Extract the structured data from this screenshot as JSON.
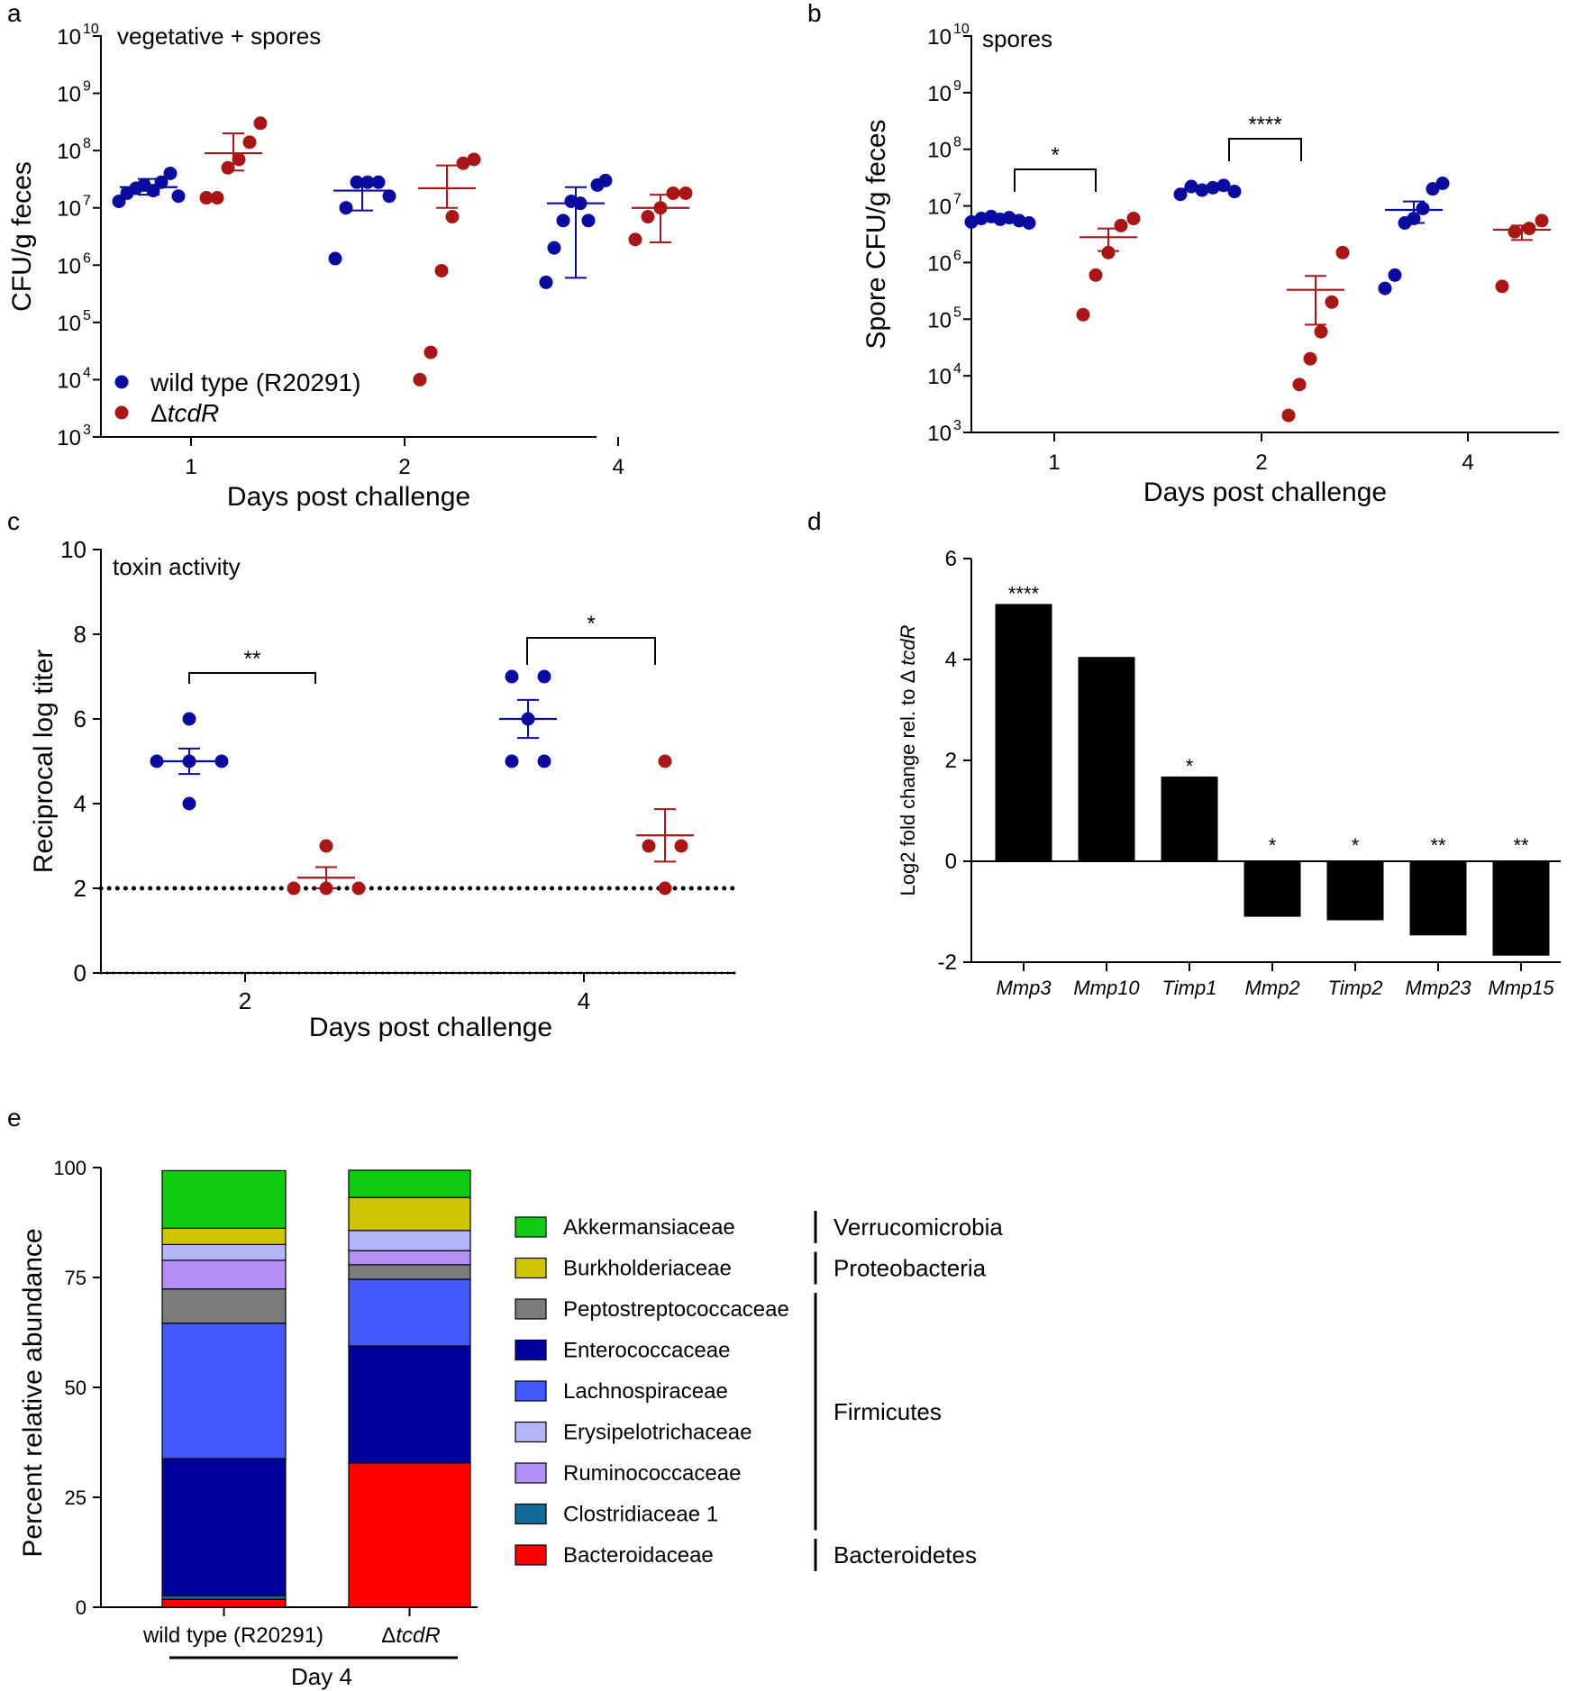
{
  "figure": {
    "panels": [
      "a",
      "b",
      "c",
      "d",
      "e"
    ]
  },
  "colors": {
    "wild_type": "#0a0a9e",
    "mutant": "#a81616",
    "black": "#000000"
  },
  "legend_ab": {
    "wild_type": "wild type (R20291)",
    "mutant_prefix": "Δ",
    "mutant_gene": "tcdR"
  },
  "chart_data": [
    {
      "id": "a",
      "type": "scatter",
      "scale": "log",
      "panel_label": "a",
      "title": "vegetative + spores",
      "xlabel": "Days post challenge",
      "ylabel": "CFU/g feces",
      "categories": [
        "1",
        "2",
        "4"
      ],
      "ylim_exp": [
        3,
        10
      ],
      "ytick_base": "10",
      "ytick_exps": [
        "3",
        "4",
        "5",
        "6",
        "7",
        "8",
        "9",
        "10"
      ],
      "series": [
        {
          "name": "wild type (R20291)",
          "groups": [
            {
              "x": "1",
              "points": [
                13000000,
                18000000,
                22000000,
                25000000,
                20000000,
                28000000,
                40000000,
                16000000
              ],
              "mean": 23000000,
              "err_low": 17000000,
              "err_high": 32000000
            },
            {
              "x": "2",
              "points": [
                1300000,
                10000000,
                28000000,
                28000000,
                28000000,
                16000000
              ],
              "mean": 20000000,
              "err_low": 9000000,
              "err_high": 30000000
            },
            {
              "x": "4",
              "points": [
                500000,
                2000000,
                6000000,
                13000000,
                12000000,
                6000000,
                25000000,
                30000000
              ],
              "mean": 12000000,
              "err_low": 600000,
              "err_high": 23000000
            }
          ]
        },
        {
          "name": "ΔtcdR",
          "groups": [
            {
              "x": "1",
              "points": [
                15000000,
                15000000,
                50000000,
                70000000,
                140000000,
                300000000
              ],
              "mean": 90000000,
              "err_low": 45000000,
              "err_high": 200000000
            },
            {
              "x": "2",
              "points": [
                10000,
                30000,
                800000,
                7000000,
                60000000,
                70000000
              ],
              "mean": 22000000,
              "err_low": 10000000,
              "err_high": 55000000
            },
            {
              "x": "4",
              "points": [
                2800000,
                7000000,
                10000000,
                18000000,
                18000000
              ],
              "mean": 10000000,
              "err_low": 2500000,
              "err_high": 17000000
            }
          ]
        }
      ]
    },
    {
      "id": "b",
      "type": "scatter",
      "scale": "log",
      "panel_label": "b",
      "title": "spores",
      "xlabel": "Days post challenge",
      "ylabel": "Spore CFU/g feces",
      "categories": [
        "1",
        "2",
        "4"
      ],
      "ylim_exp": [
        3,
        10
      ],
      "ytick_base": "10",
      "ytick_exps": [
        "3",
        "4",
        "5",
        "6",
        "7",
        "8",
        "9",
        "10"
      ],
      "series": [
        {
          "name": "wild type (R20291)",
          "groups": [
            {
              "x": "1",
              "points": [
                5200000,
                6000000,
                6500000,
                5800000,
                6200000,
                5500000,
                5000000
              ],
              "mean": 5800000,
              "err_low": 5200000,
              "err_high": 6400000
            },
            {
              "x": "2",
              "points": [
                16000000,
                22000000,
                19000000,
                21000000,
                23000000,
                18000000
              ],
              "mean": 20000000,
              "err_low": 18000000,
              "err_high": 22000000
            },
            {
              "x": "4",
              "points": [
                350000,
                600000,
                5000000,
                6000000,
                9000000,
                20000000,
                25000000
              ],
              "mean": 8500000,
              "err_low": 5000000,
              "err_high": 12000000
            }
          ]
        },
        {
          "name": "ΔtcdR",
          "groups": [
            {
              "x": "1",
              "points": [
                120000,
                600000,
                1500000,
                4500000,
                6000000
              ],
              "mean": 2800000,
              "err_low": 1600000,
              "err_high": 4000000
            },
            {
              "x": "2",
              "points": [
                2000,
                7000,
                20000,
                60000,
                200000,
                1500000
              ],
              "mean": 330000,
              "err_low": 80000,
              "err_high": 580000
            },
            {
              "x": "4",
              "points": [
                380000,
                3500000,
                4000000,
                5500000
              ],
              "mean": 3800000,
              "err_low": 2500000,
              "err_high": 4500000
            }
          ]
        }
      ],
      "annotations": [
        {
          "x": "1",
          "text": "*"
        },
        {
          "x": "2",
          "text": "****"
        }
      ]
    },
    {
      "id": "c",
      "type": "scatter",
      "scale": "linear",
      "panel_label": "c",
      "title": "toxin activity",
      "xlabel": "Days post challenge",
      "ylabel": "Reciprocal log titer",
      "categories": [
        "2",
        "4"
      ],
      "ylim": [
        0,
        10
      ],
      "yticks": [
        "0",
        "2",
        "4",
        "6",
        "8",
        "10"
      ],
      "limit_of_detection": 2,
      "series": [
        {
          "name": "wild type (R20291)",
          "groups": [
            {
              "x": "2",
              "points": [
                6,
                5,
                5,
                5,
                4
              ],
              "mean": 5.0,
              "err_low": 4.7,
              "err_high": 5.3
            },
            {
              "x": "4",
              "points": [
                7,
                7,
                6,
                5,
                5
              ],
              "mean": 6.0,
              "err_low": 5.55,
              "err_high": 6.45
            }
          ]
        },
        {
          "name": "ΔtcdR",
          "groups": [
            {
              "x": "2",
              "points": [
                3,
                2,
                2,
                2
              ],
              "mean": 2.25,
              "err_low": 2.0,
              "err_high": 2.5
            },
            {
              "x": "4",
              "points": [
                5,
                3,
                3,
                2
              ],
              "mean": 3.25,
              "err_low": 2.63,
              "err_high": 3.87
            }
          ]
        }
      ],
      "annotations": [
        {
          "x": "2",
          "text": "**"
        },
        {
          "x": "4",
          "text": "*"
        }
      ]
    },
    {
      "id": "d",
      "type": "bar",
      "panel_label": "d",
      "ylabel_prefix": "Log2 fold change rel. to",
      "ylabel_delta": "Δ ",
      "ylabel_gene": "tcdR",
      "categories": [
        "Mmp3",
        "Mmp10",
        "Timp1",
        "Mmp2",
        "Timp2",
        "Mmp23",
        "Mmp15"
      ],
      "values": [
        5.1,
        4.05,
        1.68,
        -1.1,
        -1.17,
        -1.47,
        -1.87
      ],
      "significance": [
        "****",
        "",
        "*",
        "*",
        "*",
        "**",
        "**"
      ],
      "ylim": [
        -2,
        6
      ],
      "yticks": [
        "-2",
        "0",
        "2",
        "4",
        "6"
      ]
    },
    {
      "id": "e",
      "type": "bar",
      "stacked": true,
      "panel_label": "e",
      "ylabel": "Percent relative abundance",
      "categories": [
        "wild type (R20291)",
        "ΔtcdR"
      ],
      "category_e2_prefix": "Δ",
      "category_e2_gene": "tcdR",
      "group_label": "Day 4",
      "ylim": [
        0,
        100
      ],
      "yticks": [
        "0",
        "25",
        "50",
        "75",
        "100"
      ],
      "series": [
        {
          "name": "Bacteroidaceae",
          "color": "#ff0000",
          "values": [
            1.8,
            32.8
          ]
        },
        {
          "name": "Clostridiaceae 1",
          "color": "#136b98",
          "values": [
            0.8,
            0.0
          ]
        },
        {
          "name": "Ruminococcaceae",
          "color": "#b290f5",
          "values": [
            0.0,
            0.0
          ]
        },
        {
          "name": "Enterococcaceae",
          "color": "#00009e",
          "values": [
            31.2,
            26.6
          ]
        },
        {
          "name": "Lachnospiraceae",
          "color": "#4458fb",
          "values": [
            30.8,
            15.2
          ]
        },
        {
          "name": "Peptostreptococcaceae",
          "color": "#7c7c7c",
          "values": [
            7.8,
            3.3
          ]
        },
        {
          "name": "Ruminococcaceae",
          "color": "#b290f5",
          "values": [
            6.5,
            3.2
          ]
        },
        {
          "name": "Erysipelotrichaceae",
          "color": "#b4b4f8",
          "values": [
            3.6,
            4.6
          ]
        },
        {
          "name": "Burkholderiaceae",
          "color": "#cec400",
          "values": [
            3.7,
            7.5
          ]
        },
        {
          "name": "Akkermansiaceae",
          "color": "#10cc10",
          "values": [
            13.1,
            6.2
          ]
        }
      ],
      "legend": [
        {
          "name": "Akkermansiaceae",
          "color": "#10cc10"
        },
        {
          "name": "Burkholderiaceae",
          "color": "#cec400"
        },
        {
          "name": "Peptostreptococcaceae",
          "color": "#7c7c7c"
        },
        {
          "name": "Enterococcaceae",
          "color": "#00009e"
        },
        {
          "name": "Lachnospiraceae",
          "color": "#4458fb"
        },
        {
          "name": "Erysipelotrichaceae",
          "color": "#b4b4f8"
        },
        {
          "name": "Ruminococcaceae",
          "color": "#b290f5"
        },
        {
          "name": "Clostridiaceae 1",
          "color": "#136b98"
        },
        {
          "name": "Bacteroidaceae",
          "color": "#ff0000"
        }
      ],
      "phyla": [
        {
          "name": "Verrucomicrobia",
          "from": 0,
          "to": 0
        },
        {
          "name": "Proteobacteria",
          "from": 1,
          "to": 1
        },
        {
          "name": "Firmicutes",
          "from": 2,
          "to": 7
        },
        {
          "name": "Bacteroidetes",
          "from": 8,
          "to": 8
        }
      ]
    }
  ]
}
